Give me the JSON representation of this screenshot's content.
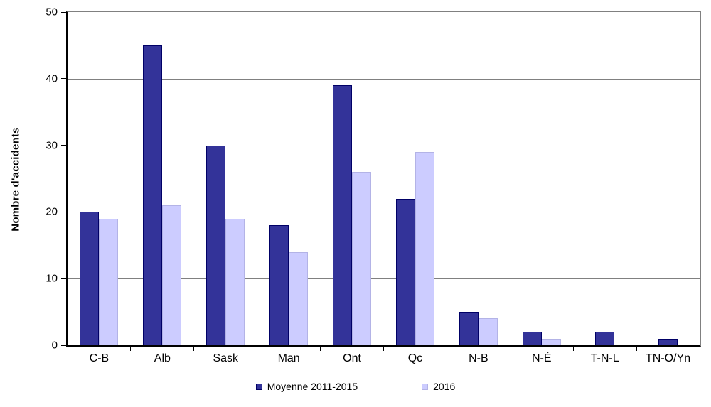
{
  "chart_data": {
    "type": "bar",
    "title": "",
    "xlabel": "",
    "ylabel": "Nombre d'accidents",
    "ylim": [
      0,
      50
    ],
    "yticks": [
      0,
      10,
      20,
      30,
      40,
      50
    ],
    "grid": true,
    "legend_position": "bottom",
    "categories": [
      "C-B",
      "Alb",
      "Sask",
      "Man",
      "Ont",
      "Qc",
      "N-B",
      "N-É",
      "T-N-L",
      "TN-O/Yn"
    ],
    "series": [
      {
        "name": "Moyenne 2011-2015",
        "fill_color": "#333399",
        "border_color": "#000066",
        "values": [
          20,
          45,
          30,
          18,
          39,
          22,
          5,
          2,
          2,
          1
        ]
      },
      {
        "name": "2016",
        "fill_color": "#CCCCFF",
        "border_color": "#B3B3E6",
        "values": [
          19,
          21,
          19,
          14,
          26,
          29,
          4,
          1,
          0,
          0
        ]
      }
    ],
    "colors": {
      "gridline": "#808080",
      "axis": "#000000",
      "text": "#000000",
      "background": "#FFFFFF"
    }
  }
}
